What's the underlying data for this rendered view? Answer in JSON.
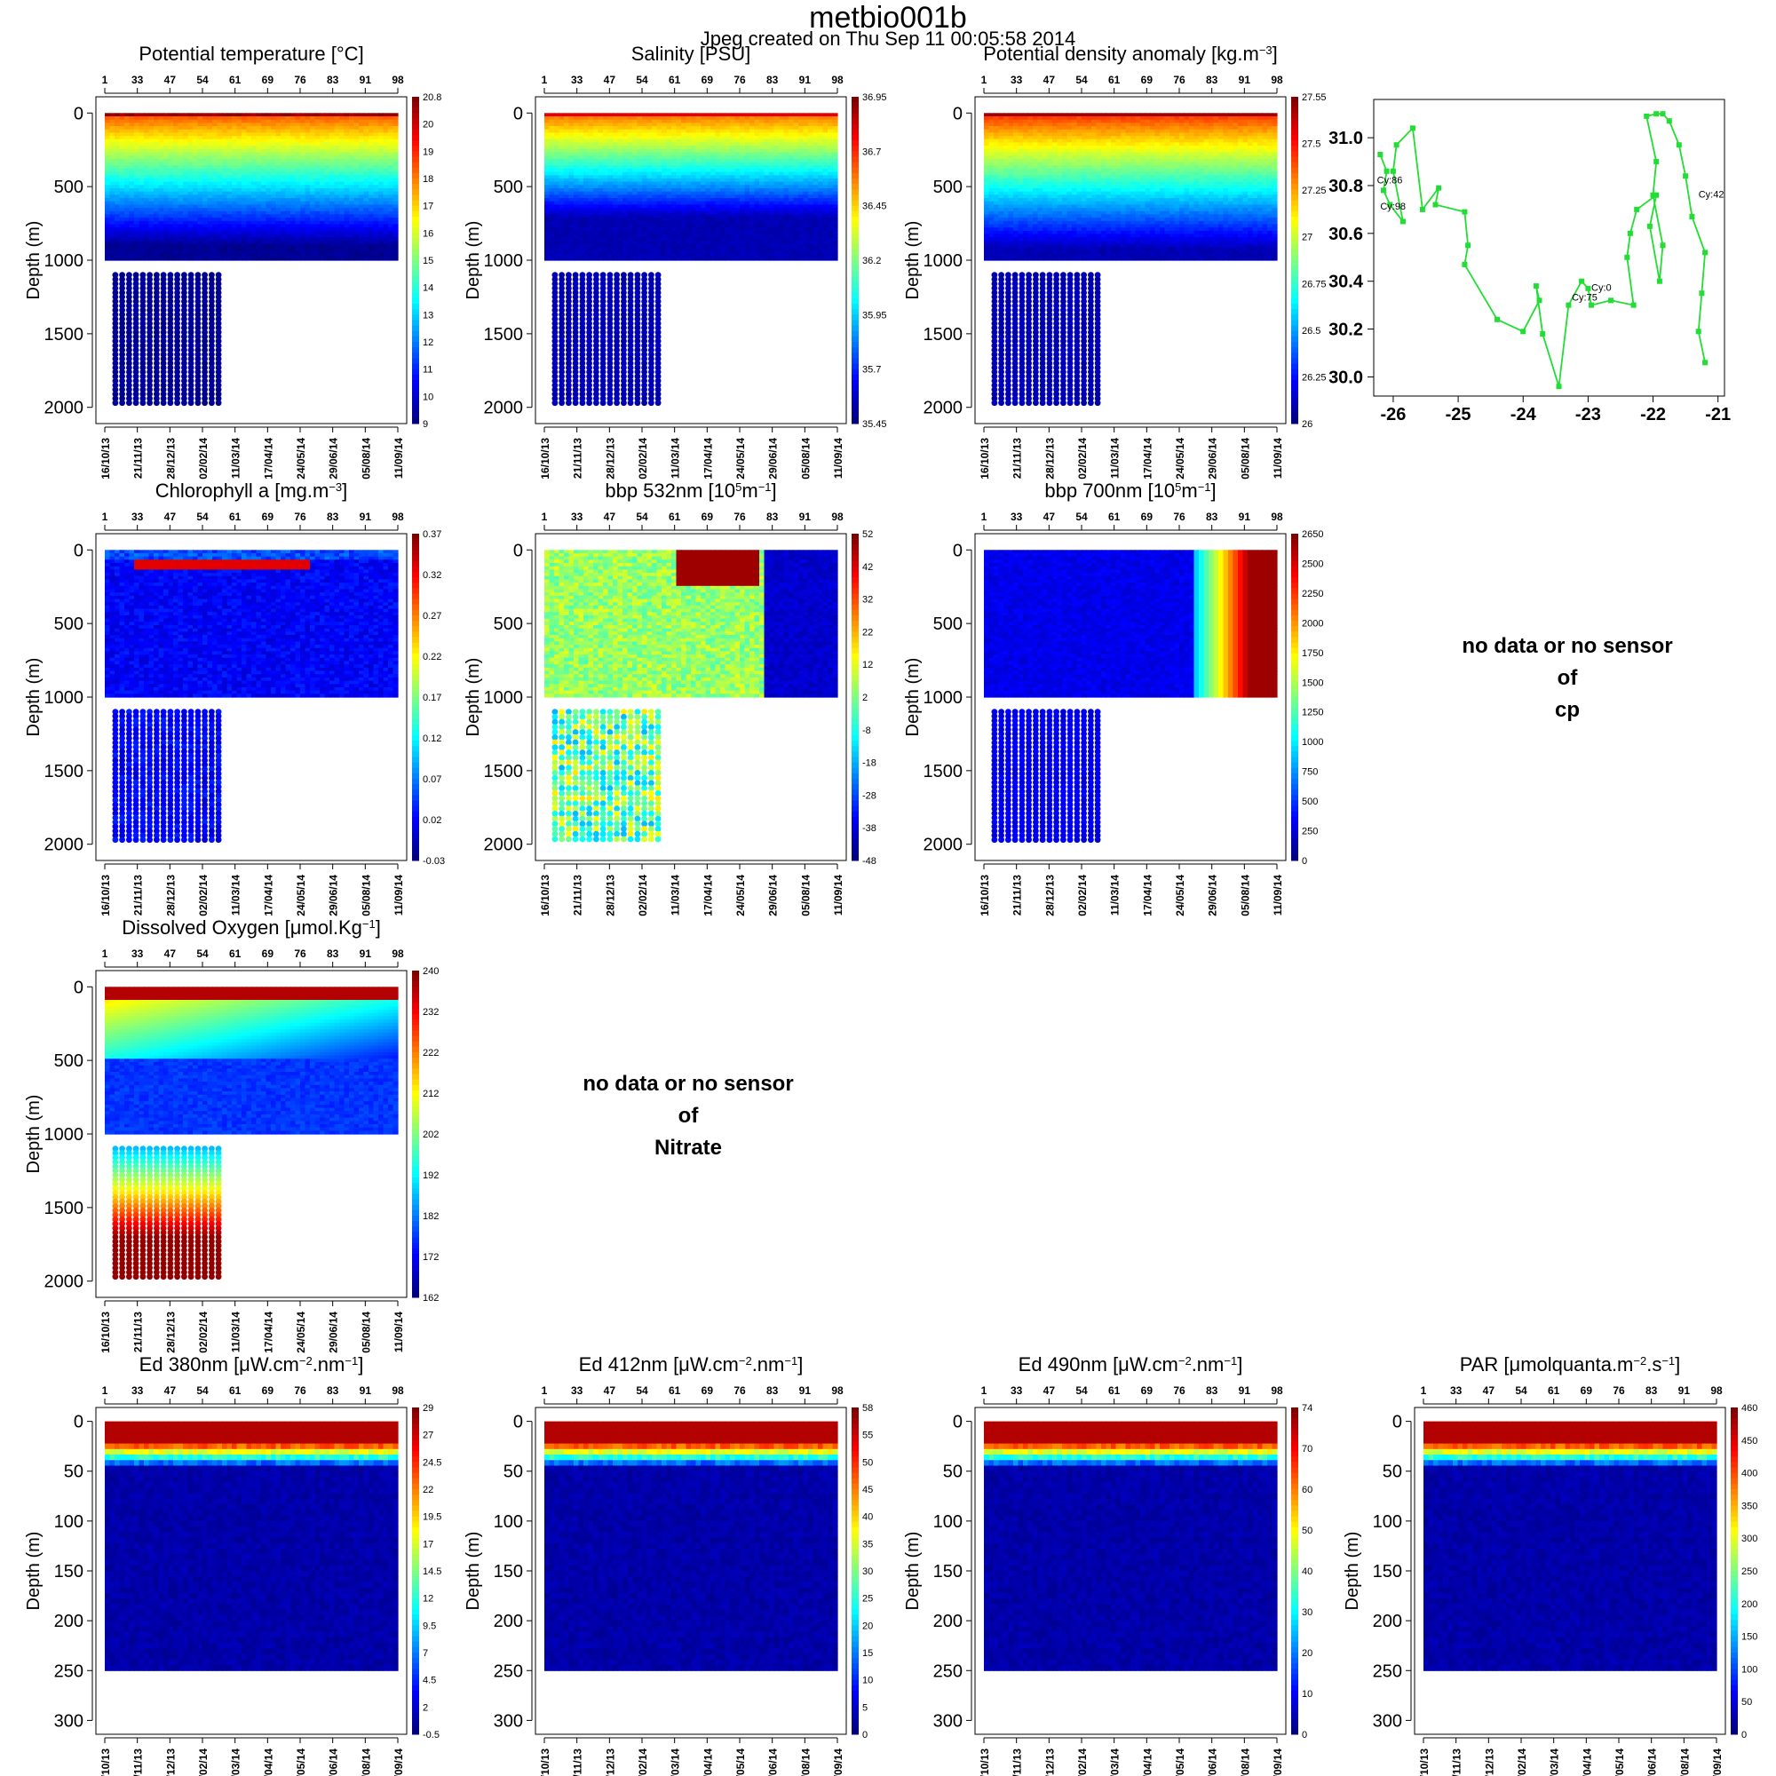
{
  "page": {
    "title": "metbio001b",
    "subtitle": "Jpeg created on  Thu Sep 11 00:05:58 2014"
  },
  "axes": {
    "cycles": [
      "1",
      "33",
      "47",
      "54",
      "61",
      "69",
      "76",
      "83",
      "91",
      "98"
    ],
    "dates": [
      "16/10/13",
      "21/11/13",
      "28/12/13",
      "02/02/14",
      "11/03/14",
      "17/04/14",
      "24/05/14",
      "29/06/14",
      "05/08/14",
      "11/09/14"
    ],
    "depth_label": "Depth (m)"
  },
  "no_data": {
    "line1": "no data or no sensor",
    "line2": "of",
    "cp": "cp",
    "nitrate": "Nitrate"
  },
  "chart_data": [
    {
      "id": "temp",
      "type": "heatmap",
      "title_html": "Potential temperature [°C]",
      "ylabel": "Depth (m)",
      "ylim": [
        2050,
        -50
      ],
      "yticks": [
        0,
        500,
        1000,
        1500,
        2000
      ],
      "colorbar": {
        "ticks": [
          "20.8",
          "20",
          "19",
          "18",
          "17",
          "16",
          "15",
          "14",
          "13",
          "12",
          "11",
          "10",
          "9"
        ]
      },
      "depth_extent": {
        "surface_cycles_max_depth": 1000,
        "deep_profiles_first_cycles_max_depth": 2000
      }
    },
    {
      "id": "sal",
      "type": "heatmap",
      "title_html": "Salinity [PSU]",
      "ylabel": "Depth (m)",
      "ylim": [
        2050,
        -50
      ],
      "yticks": [
        0,
        500,
        1000,
        1500,
        2000
      ],
      "colorbar": {
        "ticks": [
          "36.95",
          "36.7",
          "36.45",
          "36.2",
          "35.95",
          "35.7",
          "35.45"
        ]
      }
    },
    {
      "id": "dens",
      "type": "heatmap",
      "title_html": "Potential density anomaly [kg.m<tspan dy='-7' font-size='13'>−3</tspan><tspan dy='7'>]</tspan>",
      "ylabel": "Depth (m)",
      "ylim": [
        2050,
        -50
      ],
      "yticks": [
        0,
        500,
        1000,
        1500,
        2000
      ],
      "colorbar": {
        "ticks": [
          "27.55",
          "27.5",
          "27.25",
          "27",
          "26.75",
          "26.5",
          "26.25",
          "26"
        ]
      }
    },
    {
      "id": "traj",
      "type": "line",
      "title": "",
      "xlim": [
        -26.3,
        -20.9
      ],
      "ylim": [
        29.92,
        31.16
      ],
      "xticks": [
        "-26",
        "-25",
        "-24",
        "-23",
        "-22",
        "-21"
      ],
      "yticks": [
        "30.0",
        "30.2",
        "30.4",
        "30.6",
        "30.8",
        "31.0"
      ],
      "color": "#22dd33",
      "points": [
        [
          -21.2,
          30.06
        ],
        [
          -21.3,
          30.19
        ],
        [
          -21.25,
          30.35
        ],
        [
          -21.2,
          30.52
        ],
        [
          -21.4,
          30.67
        ],
        [
          -21.5,
          30.84
        ],
        [
          -21.6,
          30.97
        ],
        [
          -21.75,
          31.07
        ],
        [
          -21.85,
          31.1
        ],
        [
          -21.95,
          31.1
        ],
        [
          -22.1,
          31.09
        ],
        [
          -21.95,
          30.9
        ],
        [
          -22.0,
          30.76
        ],
        [
          -21.85,
          30.55
        ],
        [
          -21.9,
          30.4
        ],
        [
          -22.05,
          30.63
        ],
        [
          -21.95,
          30.76
        ],
        [
          -22.25,
          30.7
        ],
        [
          -22.35,
          30.6
        ],
        [
          -22.4,
          30.5
        ],
        [
          -22.3,
          30.3
        ],
        [
          -22.65,
          30.32
        ],
        [
          -22.95,
          30.3
        ],
        [
          -23.0,
          30.37
        ],
        [
          -23.1,
          30.4
        ],
        [
          -23.3,
          30.3
        ],
        [
          -23.45,
          29.96
        ],
        [
          -23.7,
          30.18
        ],
        [
          -23.8,
          30.38
        ],
        [
          -23.75,
          30.32
        ],
        [
          -24.0,
          30.19
        ],
        [
          -24.4,
          30.24
        ],
        [
          -24.9,
          30.47
        ],
        [
          -24.85,
          30.55
        ],
        [
          -24.9,
          30.69
        ],
        [
          -25.35,
          30.72
        ],
        [
          -25.3,
          30.79
        ],
        [
          -25.55,
          30.7
        ],
        [
          -25.7,
          31.04
        ],
        [
          -25.95,
          30.97
        ],
        [
          -26.0,
          30.86
        ],
        [
          -25.85,
          30.65
        ],
        [
          -26.05,
          30.72
        ],
        [
          -26.15,
          30.78
        ],
        [
          -26.1,
          30.86
        ],
        [
          -26.2,
          30.93
        ]
      ],
      "labels": [
        {
          "text": "Cy:86",
          "x": -26.25,
          "y": 30.81
        },
        {
          "text": "Cy:98",
          "x": -26.2,
          "y": 30.7
        },
        {
          "text": "Cy:42",
          "x": -21.3,
          "y": 30.75
        },
        {
          "text": "Cy:0",
          "x": -22.95,
          "y": 30.36
        },
        {
          "text": "Cy:75",
          "x": -23.25,
          "y": 30.32
        }
      ]
    },
    {
      "id": "chla",
      "type": "heatmap",
      "title_html": "Chlorophyll a [mg.m<tspan dy='-7' font-size='13'>−3</tspan><tspan dy='7'>]</tspan>",
      "ylabel": "Depth (m)",
      "ylim": [
        2050,
        -50
      ],
      "yticks": [
        0,
        500,
        1000,
        1500,
        2000
      ],
      "colorbar": {
        "ticks": [
          "0.37",
          "0.32",
          "0.27",
          "0.22",
          "0.17",
          "0.12",
          "0.07",
          "0.02",
          "-0.03"
        ]
      }
    },
    {
      "id": "bbp532",
      "type": "heatmap",
      "title_html": "bbp 532nm [10<tspan dy='-7' font-size='13'>5</tspan><tspan dy='7'>m</tspan><tspan dy='-7' font-size='13'>−1</tspan><tspan dy='7'>]</tspan>",
      "ylabel": "Depth (m)",
      "ylim": [
        2050,
        -50
      ],
      "yticks": [
        0,
        500,
        1000,
        1500,
        2000
      ],
      "colorbar": {
        "ticks": [
          "52",
          "42",
          "32",
          "22",
          "12",
          "2",
          "-8",
          "-18",
          "-28",
          "-38",
          "-48"
        ]
      }
    },
    {
      "id": "bbp700",
      "type": "heatmap",
      "title_html": "bbp 700nm [10<tspan dy='-7' font-size='13'>5</tspan><tspan dy='7'>m</tspan><tspan dy='-7' font-size='13'>−1</tspan><tspan dy='7'>]</tspan>",
      "ylabel": "Depth (m)",
      "ylim": [
        2050,
        -50
      ],
      "yticks": [
        0,
        500,
        1000,
        1500,
        2000
      ],
      "colorbar": {
        "ticks": [
          "2650",
          "2500",
          "2250",
          "2000",
          "1750",
          "1500",
          "1250",
          "1000",
          "750",
          "500",
          "250",
          "0"
        ]
      }
    },
    {
      "id": "oxy",
      "type": "heatmap",
      "title_html": "Dissolved Oxygen [μmol.Kg<tspan dy='-7' font-size='13'>−1</tspan><tspan dy='7'>]</tspan>",
      "ylabel": "Depth (m)",
      "ylim": [
        2050,
        -50
      ],
      "yticks": [
        0,
        500,
        1000,
        1500,
        2000
      ],
      "colorbar": {
        "ticks": [
          "240",
          "232",
          "222",
          "212",
          "202",
          "192",
          "182",
          "172",
          "162"
        ]
      }
    },
    {
      "id": "ed380",
      "type": "heatmap",
      "title_html": "Ed 380nm [μW.cm<tspan dy='-7' font-size='13'>−2</tspan><tspan dy='7'>.nm</tspan><tspan dy='-7' font-size='13'>−1</tspan><tspan dy='7'>]</tspan>",
      "ylabel": "Depth (m)",
      "ylim": [
        305,
        -5
      ],
      "yticks": [
        0,
        50,
        100,
        150,
        200,
        250,
        300
      ],
      "colorbar": {
        "ticks": [
          "29",
          "27",
          "24.5",
          "22",
          "19.5",
          "17",
          "14.5",
          "12",
          "9.5",
          "7",
          "4.5",
          "2",
          "-0.5"
        ]
      }
    },
    {
      "id": "ed412",
      "type": "heatmap",
      "title_html": "Ed 412nm [μW.cm<tspan dy='-7' font-size='13'>−2</tspan><tspan dy='7'>.nm</tspan><tspan dy='-7' font-size='13'>−1</tspan><tspan dy='7'>]</tspan>",
      "ylabel": "Depth (m)",
      "ylim": [
        305,
        -5
      ],
      "yticks": [
        0,
        50,
        100,
        150,
        200,
        250,
        300
      ],
      "colorbar": {
        "ticks": [
          "58",
          "55",
          "50",
          "45",
          "40",
          "35",
          "30",
          "25",
          "20",
          "15",
          "10",
          "5",
          "0"
        ]
      }
    },
    {
      "id": "ed490",
      "type": "heatmap",
      "title_html": "Ed 490nm [μW.cm<tspan dy='-7' font-size='13'>−2</tspan><tspan dy='7'>.nm</tspan><tspan dy='-7' font-size='13'>−1</tspan><tspan dy='7'>]</tspan>",
      "ylabel": "Depth (m)",
      "ylim": [
        305,
        -5
      ],
      "yticks": [
        0,
        50,
        100,
        150,
        200,
        250,
        300
      ],
      "colorbar": {
        "ticks": [
          "74",
          "70",
          "60",
          "50",
          "40",
          "30",
          "20",
          "10",
          "0"
        ]
      }
    },
    {
      "id": "par",
      "type": "heatmap",
      "title_html": "PAR [μmolquanta.m<tspan dy='-7' font-size='13'>−2</tspan><tspan dy='7'>.s</tspan><tspan dy='-7' font-size='13'>−1</tspan><tspan dy='7'>]</tspan>",
      "ylabel": "Depth (m)",
      "ylim": [
        305,
        -5
      ],
      "yticks": [
        0,
        50,
        100,
        150,
        200,
        250,
        300
      ],
      "colorbar": {
        "ticks": [
          "460",
          "450",
          "400",
          "350",
          "300",
          "250",
          "200",
          "150",
          "100",
          "50",
          "0"
        ]
      }
    }
  ]
}
